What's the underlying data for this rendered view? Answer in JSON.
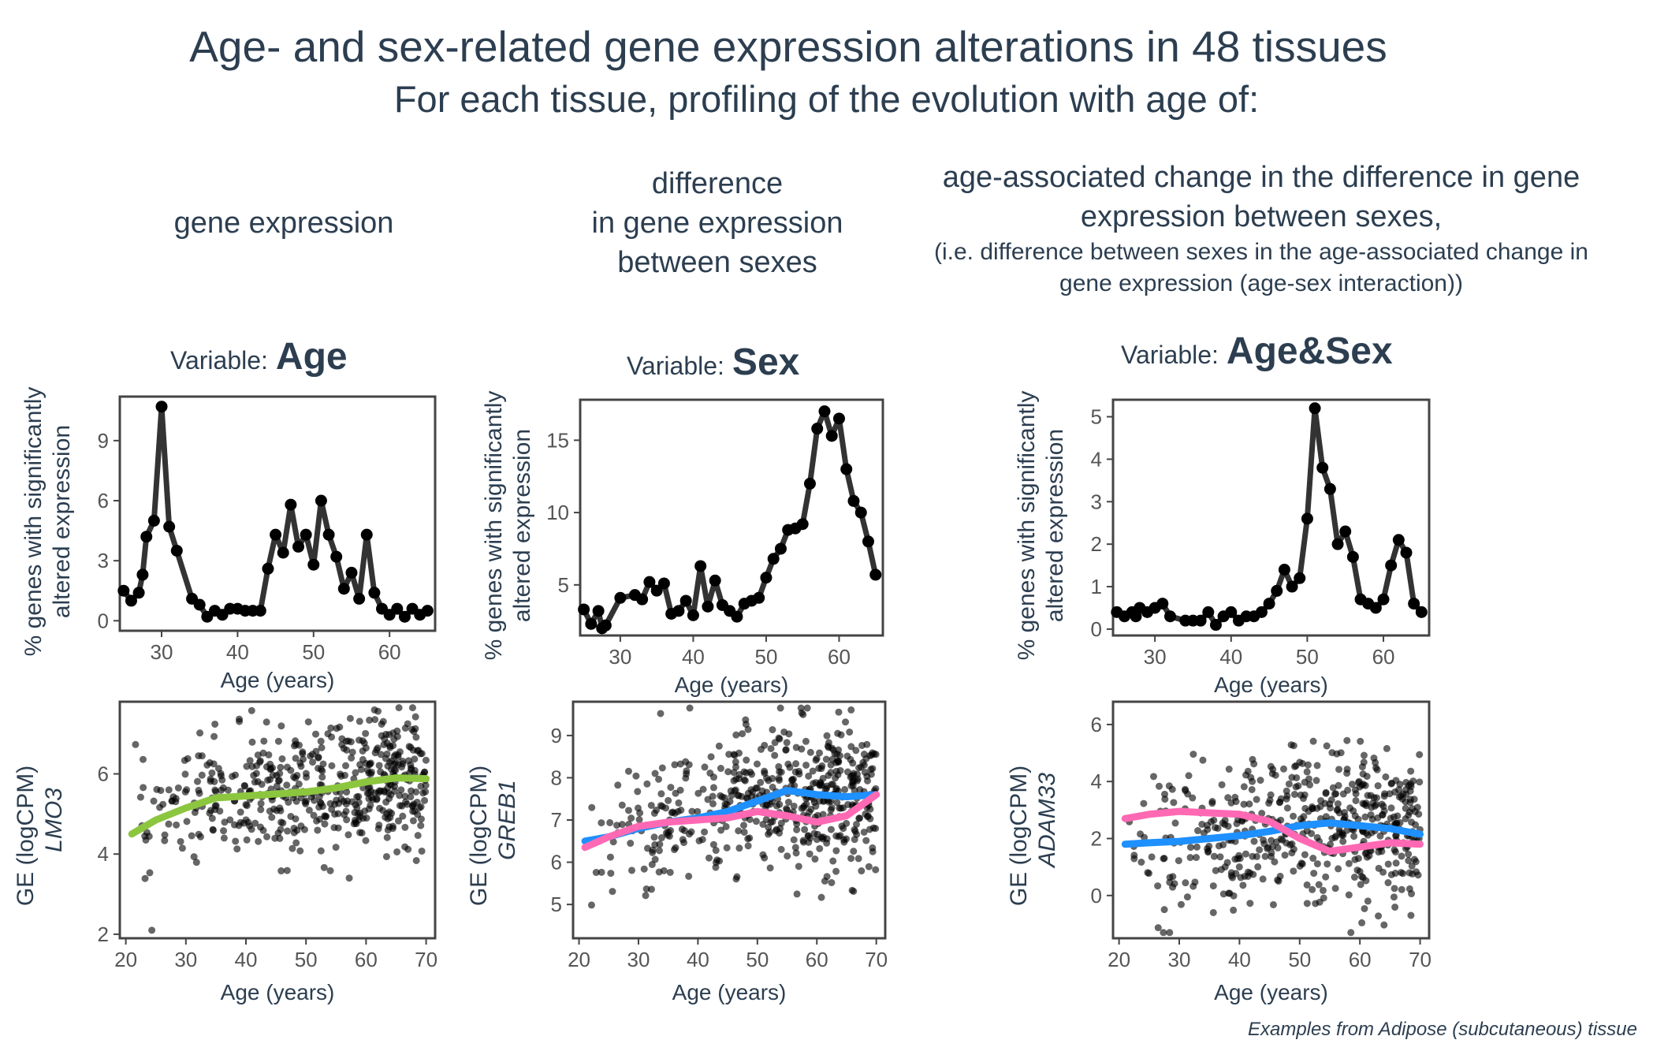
{
  "title": "Age- and sex-related gene expression alterations in 48 tissues",
  "subtitle": "For each tissue, profiling of the evolution with age of:",
  "columns": [
    {
      "heading": "gene expression",
      "variable_prefix": "Variable:",
      "variable": "Age"
    },
    {
      "heading_lines": [
        "difference",
        "in gene expression",
        "between sexes"
      ],
      "variable_prefix": "Variable:",
      "variable": "Sex"
    },
    {
      "heading_lines": [
        "age-associated change in the difference in gene",
        "expression between sexes,"
      ],
      "note_lines": [
        "(i.e. difference between sexes in the age-associated change in",
        "gene expression (age-sex interaction))"
      ],
      "variable_prefix": "Variable:",
      "variable": "Age&Sex"
    }
  ],
  "footnote": "Examples from Adipose (subcutaneous) tissue",
  "colors": {
    "text": "#2c3e50",
    "line": "#333333",
    "points": "#000000",
    "green": "#8cc63f",
    "blue": "#1e90ff",
    "pink": "#ff69b4",
    "axis": "#444444"
  },
  "chart_data": [
    {
      "type": "line",
      "xlabel": "Age (years)",
      "ylabel_lines": [
        "% genes with significantly",
        "altered expression"
      ],
      "xticks": [
        30,
        40,
        50,
        60
      ],
      "yticks": [
        0,
        3,
        6,
        9
      ],
      "xlim": [
        24.5,
        66
      ],
      "ylim": [
        -0.5,
        11.2
      ],
      "x": [
        25,
        26,
        27,
        27.5,
        28,
        29,
        30,
        31,
        32,
        34,
        35,
        36,
        37,
        38,
        39,
        40,
        41,
        42,
        43,
        44,
        45,
        46,
        47,
        48,
        49,
        50,
        51,
        52,
        53,
        54,
        55,
        56,
        57,
        58,
        59,
        60,
        61,
        62,
        63,
        64,
        65
      ],
      "y": [
        1.5,
        1.0,
        1.4,
        2.3,
        4.2,
        5.0,
        10.7,
        4.7,
        3.5,
        1.1,
        0.8,
        0.2,
        0.5,
        0.3,
        0.6,
        0.6,
        0.5,
        0.5,
        0.5,
        2.6,
        4.3,
        3.4,
        5.8,
        3.7,
        4.3,
        2.8,
        6.0,
        4.3,
        3.2,
        1.6,
        2.4,
        1.1,
        4.3,
        1.4,
        0.6,
        0.3,
        0.6,
        0.2,
        0.6,
        0.3,
        0.5
      ]
    },
    {
      "type": "line",
      "xlabel": "Age (years)",
      "ylabel_lines": [
        "% genes with significantly",
        "altered expression"
      ],
      "xticks": [
        30,
        40,
        50,
        60
      ],
      "yticks": [
        5,
        10,
        15
      ],
      "xlim": [
        24.5,
        66
      ],
      "ylim": [
        1.5,
        17.8
      ],
      "x": [
        25,
        26,
        27,
        27.5,
        28,
        30,
        32,
        33,
        34,
        35,
        36,
        37,
        38,
        39,
        40,
        41,
        42,
        43,
        44,
        45,
        46,
        47,
        48,
        49,
        50,
        51,
        52,
        53,
        54,
        55,
        56,
        57,
        58,
        59,
        60,
        61,
        62,
        63,
        64,
        65
      ],
      "y": [
        3.3,
        2.3,
        3.2,
        2.0,
        2.2,
        4.1,
        4.3,
        4.0,
        5.2,
        4.6,
        5.1,
        3.0,
        3.2,
        3.9,
        2.9,
        6.3,
        3.5,
        5.3,
        3.6,
        3.2,
        2.8,
        3.7,
        3.9,
        4.1,
        5.5,
        6.8,
        7.5,
        8.8,
        8.9,
        9.2,
        12.0,
        15.8,
        17.0,
        15.3,
        16.5,
        13.0,
        10.8,
        10.0,
        8.0,
        5.7
      ]
    },
    {
      "type": "line",
      "xlabel": "Age (years)",
      "ylabel_lines": [
        "% genes with significantly",
        "altered expression"
      ],
      "xticks": [
        30,
        40,
        50,
        60
      ],
      "yticks": [
        0,
        1,
        2,
        3,
        4,
        5
      ],
      "xlim": [
        24.5,
        66
      ],
      "ylim": [
        -0.15,
        5.4
      ],
      "x": [
        25,
        26,
        27,
        27.5,
        28,
        29,
        30,
        31,
        32,
        34,
        35,
        36,
        37,
        38,
        39,
        40,
        41,
        42,
        43,
        44,
        45,
        46,
        47,
        48,
        49,
        50,
        51,
        52,
        53,
        54,
        55,
        56,
        57,
        58,
        59,
        60,
        61,
        62,
        63,
        64,
        65
      ],
      "y": [
        0.4,
        0.3,
        0.4,
        0.3,
        0.5,
        0.4,
        0.5,
        0.6,
        0.3,
        0.2,
        0.2,
        0.2,
        0.4,
        0.1,
        0.3,
        0.4,
        0.2,
        0.3,
        0.3,
        0.4,
        0.6,
        0.9,
        1.4,
        1.0,
        1.2,
        2.6,
        5.2,
        3.8,
        3.3,
        2.0,
        2.3,
        1.7,
        0.7,
        0.6,
        0.5,
        0.7,
        1.5,
        2.1,
        1.8,
        0.6,
        0.4
      ]
    },
    {
      "type": "scatter",
      "gene": "LMO3",
      "xlabel": "Age (years)",
      "ylabel": "GE (logCPM)",
      "xticks": [
        20,
        30,
        40,
        50,
        60,
        70
      ],
      "yticks": [
        2,
        4,
        6
      ],
      "xlim": [
        19,
        71.5
      ],
      "ylim": [
        1.9,
        7.8
      ],
      "fits": [
        {
          "color": "green",
          "x": [
            21,
            25,
            30,
            35,
            40,
            45,
            50,
            55,
            60,
            65,
            70
          ],
          "y": [
            4.5,
            4.85,
            5.15,
            5.4,
            5.45,
            5.5,
            5.55,
            5.65,
            5.8,
            5.9,
            5.88
          ]
        }
      ]
    },
    {
      "type": "scatter",
      "gene": "GREB1",
      "xlabel": "Age (years)",
      "ylabel": "GE (logCPM)",
      "xticks": [
        20,
        30,
        40,
        50,
        60,
        70
      ],
      "yticks": [
        5,
        6,
        7,
        8,
        9
      ],
      "xlim": [
        19,
        71.5
      ],
      "ylim": [
        4.2,
        9.8
      ],
      "fits": [
        {
          "color": "blue",
          "x": [
            21,
            25,
            30,
            35,
            40,
            45,
            50,
            55,
            60,
            65,
            70
          ],
          "y": [
            6.5,
            6.6,
            6.8,
            6.95,
            7.05,
            7.2,
            7.45,
            7.7,
            7.6,
            7.55,
            7.6
          ]
        },
        {
          "color": "pink",
          "x": [
            21,
            25,
            30,
            35,
            40,
            45,
            50,
            55,
            60,
            65,
            70
          ],
          "y": [
            6.35,
            6.6,
            6.85,
            6.95,
            7.0,
            7.05,
            7.2,
            7.1,
            6.95,
            7.1,
            7.6
          ]
        }
      ]
    },
    {
      "type": "scatter",
      "gene": "ADAM33",
      "xlabel": "Age (years)",
      "ylabel": "GE (logCPM)",
      "xticks": [
        20,
        30,
        40,
        50,
        60,
        70
      ],
      "yticks": [
        0,
        2,
        4,
        6
      ],
      "xlim": [
        19,
        71.5
      ],
      "ylim": [
        -1.5,
        6.8
      ],
      "fits": [
        {
          "color": "blue",
          "x": [
            21,
            25,
            30,
            35,
            40,
            45,
            50,
            55,
            60,
            65,
            70
          ],
          "y": [
            1.8,
            1.85,
            1.9,
            2.0,
            2.1,
            2.25,
            2.45,
            2.55,
            2.45,
            2.35,
            2.15
          ]
        },
        {
          "color": "pink",
          "x": [
            21,
            25,
            30,
            35,
            40,
            45,
            50,
            55,
            60,
            65,
            70
          ],
          "y": [
            2.7,
            2.85,
            2.95,
            2.9,
            2.85,
            2.6,
            2.0,
            1.55,
            1.7,
            1.85,
            1.8
          ]
        }
      ]
    }
  ]
}
